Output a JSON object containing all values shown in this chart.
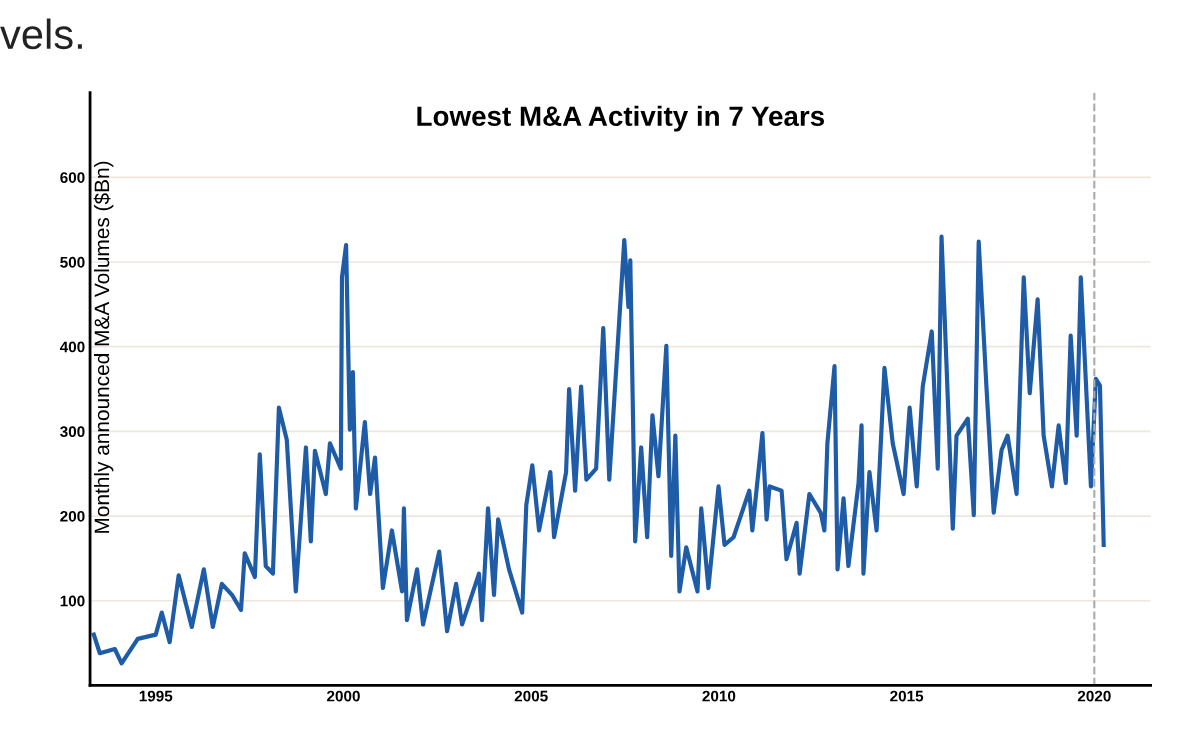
{
  "chart_data": {
    "type": "line",
    "title": "Lowest M&A Activity in 7 Years",
    "ylabel": "Monthly announced M&A Volumes ($Bn)",
    "annotations": [
      "vels."
    ],
    "x": [
      1993.35,
      1993.51,
      1993.91,
      1994.09,
      1994.52,
      1995.0,
      1995.16,
      1995.37,
      1995.61,
      1995.96,
      1996.28,
      1996.52,
      1996.76,
      1997.03,
      1997.27,
      1997.37,
      1997.64,
      1997.77,
      1997.93,
      1998.12,
      1998.28,
      1998.49,
      1998.73,
      1999.0,
      1999.13,
      1999.24,
      1999.53,
      1999.64,
      1999.93,
      1999.96,
      2000.07,
      2000.17,
      2000.25,
      2000.33,
      2000.57,
      2000.71,
      2000.84,
      2001.05,
      2001.29,
      2001.56,
      2001.61,
      2001.69,
      2001.96,
      2002.12,
      2002.55,
      2002.76,
      2003.0,
      2003.16,
      2003.61,
      2003.69,
      2003.85,
      2004.01,
      2004.12,
      2004.41,
      2004.76,
      2004.87,
      2005.03,
      2005.21,
      2005.51,
      2005.61,
      2005.93,
      2006.01,
      2006.17,
      2006.33,
      2006.47,
      2006.73,
      2006.92,
      2007.08,
      2007.48,
      2007.59,
      2007.64,
      2007.77,
      2007.93,
      2008.09,
      2008.23,
      2008.39,
      2008.6,
      2008.73,
      2008.84,
      2008.95,
      2009.13,
      2009.43,
      2009.53,
      2009.72,
      2009.99,
      2010.15,
      2010.39,
      2010.81,
      2010.89,
      2011.16,
      2011.27,
      2011.35,
      2011.67,
      2011.8,
      2012.07,
      2012.15,
      2012.41,
      2012.71,
      2012.81,
      2012.89,
      2013.08,
      2013.16,
      2013.32,
      2013.45,
      2013.72,
      2013.8,
      2013.85,
      2014.01,
      2014.2,
      2014.41,
      2014.63,
      2014.92,
      2015.08,
      2015.27,
      2015.43,
      2015.67,
      2015.83,
      2015.93,
      2016.07,
      2016.23,
      2016.33,
      2016.63,
      2016.79,
      2016.92,
      2017.13,
      2017.32,
      2017.53,
      2017.69,
      2017.93,
      2018.12,
      2018.28,
      2018.49,
      2018.65,
      2018.87,
      2019.05,
      2019.24,
      2019.37,
      2019.53,
      2019.64,
      2019.91,
      2020.04,
      2020.15,
      2020.25
    ],
    "series": [
      {
        "color": "#1f5ca8",
        "values": [
          60,
          38,
          43,
          26,
          55,
          60,
          86,
          51,
          130,
          69,
          137,
          69,
          120,
          107,
          89,
          156,
          128,
          273,
          141,
          132,
          328,
          290,
          111,
          281,
          170,
          277,
          226,
          286,
          256,
          482,
          520,
          302,
          370,
          209,
          311,
          226,
          269,
          115,
          183,
          111,
          209,
          77,
          137,
          72,
          158,
          64,
          120,
          72,
          132,
          77,
          209,
          107,
          196,
          137,
          86,
          213,
          260,
          183,
          252,
          175,
          252,
          350,
          230,
          353,
          243,
          256,
          422,
          243,
          526,
          447,
          502,
          170,
          281,
          175,
          319,
          247,
          401,
          153,
          295,
          111,
          163,
          111,
          209,
          115,
          235,
          166,
          175,
          230,
          183,
          298,
          196,
          235,
          230,
          149,
          192,
          132,
          226,
          204,
          183,
          286,
          377,
          137,
          221,
          141,
          239,
          307,
          132,
          252,
          183,
          375,
          286,
          226,
          328,
          235,
          353,
          418,
          256,
          530,
          370,
          185,
          295,
          315,
          201,
          524,
          350,
          204,
          278,
          295,
          226,
          482,
          345,
          456,
          295,
          235,
          307,
          239,
          413,
          295,
          482,
          235,
          362,
          354,
          166
        ]
      }
    ],
    "xlim": [
      1993.25,
      2021.5
    ],
    "xticks": [
      1995,
      2000,
      2005,
      2010,
      2015,
      2020
    ],
    "ylim": [
      0,
      700
    ],
    "yticks": [
      100,
      200,
      300,
      400,
      500,
      600
    ],
    "grid": "y",
    "legend": false,
    "marker": "none",
    "line_style": "solid",
    "ref_lines": [
      {
        "axis": "x",
        "value": 2020,
        "color": "#aaaaaa",
        "line_style": "dashed"
      }
    ]
  }
}
